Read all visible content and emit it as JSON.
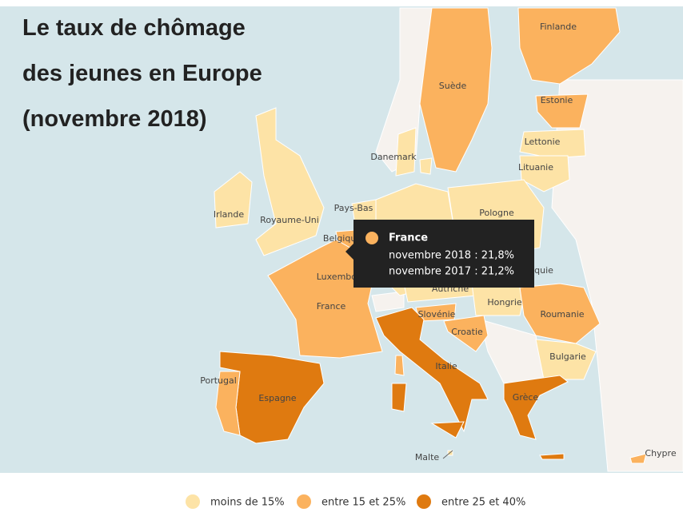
{
  "title": [
    "Le taux de chômage",
    "des jeunes en Europe",
    "(novembre 2018)"
  ],
  "legend": [
    {
      "label": "moins de 15%",
      "color": "#fde3a6"
    },
    {
      "label": "entre 15 et 25%",
      "color": "#fbb25e"
    },
    {
      "label": "entre 25 et 40%",
      "color": "#df7a10"
    }
  ],
  "countries": [
    {
      "name": "Finlande",
      "category": 1
    },
    {
      "name": "Suède",
      "category": 1
    },
    {
      "name": "Estonie",
      "category": 1
    },
    {
      "name": "Lettonie",
      "category": 0
    },
    {
      "name": "Lituanie",
      "category": 0
    },
    {
      "name": "Danemark",
      "category": 0
    },
    {
      "name": "Irlande",
      "category": 0
    },
    {
      "name": "Royaume-Uni",
      "category": 0
    },
    {
      "name": "Pays-Bas",
      "category": 0
    },
    {
      "name": "Belgique",
      "category": 1
    },
    {
      "name": "Luxembourg",
      "category": 1
    },
    {
      "name": "France",
      "category": 1
    },
    {
      "name": "Pologne",
      "category": 0
    },
    {
      "name": "Slovaquie",
      "category": 0
    },
    {
      "name": "Autriche",
      "category": 0
    },
    {
      "name": "Hongrie",
      "category": 0
    },
    {
      "name": "Roumanie",
      "category": 1
    },
    {
      "name": "Bulgarie",
      "category": 0
    },
    {
      "name": "Slovénie",
      "category": 1
    },
    {
      "name": "Croatie",
      "category": 1
    },
    {
      "name": "Italie",
      "category": 2
    },
    {
      "name": "Espagne",
      "category": 2
    },
    {
      "name": "Portugal",
      "category": 1
    },
    {
      "name": "Grèce",
      "category": 2
    },
    {
      "name": "Malte",
      "category": 0
    },
    {
      "name": "Chypre",
      "category": 1
    }
  ],
  "tooltip": {
    "name": "France",
    "lines": [
      "novembre 2018 : 21,8%",
      "novembre 2017 : 21,2%"
    ]
  }
}
